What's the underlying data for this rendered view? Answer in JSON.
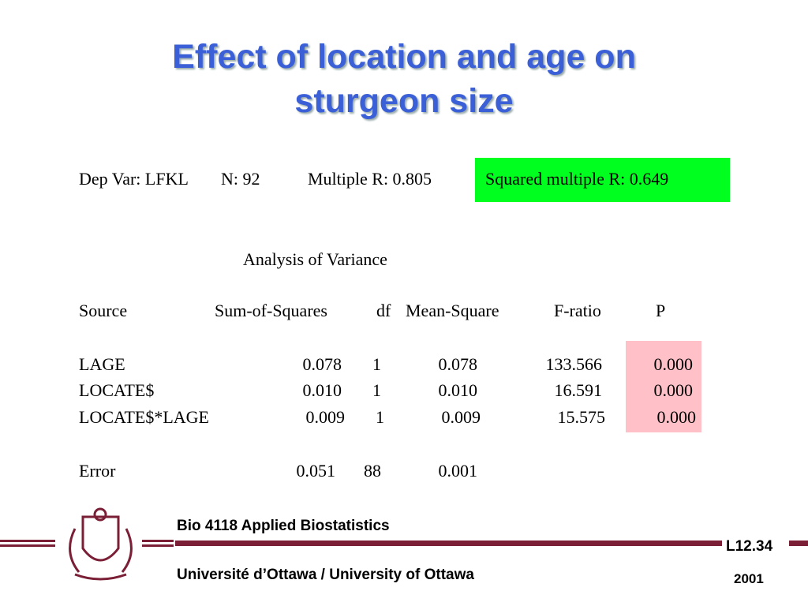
{
  "title": [
    "Effect of location and age on",
    "sturgeon size"
  ],
  "summary": {
    "dep_var": "Dep Var: LFKL",
    "n": "N: 92",
    "multiple_r": "Multiple R: 0.805",
    "squared_r": "Squared multiple R: 0.649"
  },
  "anova": {
    "heading": "Analysis of Variance",
    "columns": [
      "Source",
      "Sum-of-Squares",
      "df",
      "Mean-Square",
      "F-ratio",
      "P"
    ],
    "rows": [
      [
        "LAGE",
        "0.078",
        "1",
        "0.078",
        "133.566",
        "0.000"
      ],
      [
        "LOCATE$",
        "0.010",
        "1",
        "0.010",
        "16.591",
        "0.000"
      ],
      [
        "LOCATE$*LAGE",
        "0.009",
        "1",
        "0.009",
        "15.575",
        "0.000"
      ]
    ],
    "error": [
      "Error",
      "0.051",
      "88",
      "0.001"
    ]
  },
  "footer": {
    "course": "Bio 4118 Applied Biostatistics",
    "university": "Université d’Ottawa / University of Ottawa",
    "slide": "L12.34",
    "year": "2001"
  }
}
